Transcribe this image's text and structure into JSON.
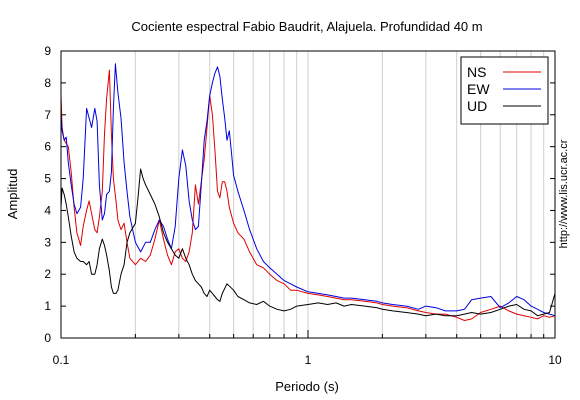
{
  "chart_data": {
    "type": "line",
    "title": "Cociente espectral Fabio Baudrit, Alajuela. Profundidad 40 m",
    "xlabel": "Periodo (s)",
    "ylabel": "Amplitud",
    "x_scale": "log",
    "xlim": [
      0.1,
      10
    ],
    "ylim": [
      0,
      9
    ],
    "x_tick_labels": [
      "0.1",
      "1",
      "10"
    ],
    "y_ticks": [
      0,
      1,
      2,
      3,
      4,
      5,
      6,
      7,
      8,
      9
    ],
    "grid": "vertical log gridlines",
    "legend_position": "top-right",
    "credit": "http://www.lis.ucr.ac.cr",
    "series": [
      {
        "name": "NS",
        "color": "#e00000",
        "points": [
          [
            0.1,
            7.6
          ],
          [
            0.101,
            6.6
          ],
          [
            0.103,
            6.2
          ],
          [
            0.105,
            6.1
          ],
          [
            0.107,
            6.0
          ],
          [
            0.11,
            5.2
          ],
          [
            0.113,
            4.1
          ],
          [
            0.116,
            3.3
          ],
          [
            0.12,
            2.9
          ],
          [
            0.123,
            3.5
          ],
          [
            0.127,
            4.0
          ],
          [
            0.13,
            4.3
          ],
          [
            0.133,
            3.9
          ],
          [
            0.137,
            3.4
          ],
          [
            0.14,
            3.3
          ],
          [
            0.143,
            3.8
          ],
          [
            0.147,
            4.6
          ],
          [
            0.15,
            6.4
          ],
          [
            0.153,
            7.5
          ],
          [
            0.157,
            8.4
          ],
          [
            0.16,
            6.4
          ],
          [
            0.163,
            5.0
          ],
          [
            0.167,
            4.3
          ],
          [
            0.17,
            3.7
          ],
          [
            0.175,
            3.4
          ],
          [
            0.18,
            3.6
          ],
          [
            0.185,
            3.0
          ],
          [
            0.19,
            2.5
          ],
          [
            0.2,
            2.3
          ],
          [
            0.21,
            2.5
          ],
          [
            0.22,
            2.4
          ],
          [
            0.23,
            2.6
          ],
          [
            0.24,
            3.1
          ],
          [
            0.25,
            3.7
          ],
          [
            0.26,
            3.1
          ],
          [
            0.27,
            2.6
          ],
          [
            0.28,
            2.3
          ],
          [
            0.29,
            2.7
          ],
          [
            0.3,
            2.8
          ],
          [
            0.31,
            2.5
          ],
          [
            0.32,
            2.4
          ],
          [
            0.33,
            2.7
          ],
          [
            0.34,
            3.3
          ],
          [
            0.35,
            4.8
          ],
          [
            0.36,
            4.2
          ],
          [
            0.37,
            4.9
          ],
          [
            0.38,
            5.6
          ],
          [
            0.39,
            6.6
          ],
          [
            0.4,
            7.6
          ],
          [
            0.41,
            7.0
          ],
          [
            0.42,
            5.9
          ],
          [
            0.43,
            4.6
          ],
          [
            0.44,
            4.4
          ],
          [
            0.45,
            4.9
          ],
          [
            0.46,
            4.9
          ],
          [
            0.47,
            4.6
          ],
          [
            0.48,
            4.1
          ],
          [
            0.5,
            3.6
          ],
          [
            0.52,
            3.3
          ],
          [
            0.55,
            3.1
          ],
          [
            0.58,
            2.7
          ],
          [
            0.62,
            2.3
          ],
          [
            0.66,
            2.2
          ],
          [
            0.7,
            2.0
          ],
          [
            0.75,
            1.8
          ],
          [
            0.8,
            1.7
          ],
          [
            0.85,
            1.5
          ],
          [
            0.9,
            1.5
          ],
          [
            1.0,
            1.4
          ],
          [
            1.1,
            1.35
          ],
          [
            1.2,
            1.3
          ],
          [
            1.3,
            1.25
          ],
          [
            1.4,
            1.2
          ],
          [
            1.5,
            1.2
          ],
          [
            1.7,
            1.15
          ],
          [
            1.9,
            1.1
          ],
          [
            2.0,
            1.05
          ],
          [
            2.2,
            1.0
          ],
          [
            2.5,
            0.95
          ],
          [
            2.8,
            0.85
          ],
          [
            3.0,
            0.8
          ],
          [
            3.3,
            0.75
          ],
          [
            3.6,
            0.75
          ],
          [
            4.0,
            0.65
          ],
          [
            4.3,
            0.55
          ],
          [
            4.6,
            0.6
          ],
          [
            5.0,
            0.8
          ],
          [
            5.5,
            0.9
          ],
          [
            6.0,
            1.0
          ],
          [
            6.5,
            0.85
          ],
          [
            7.0,
            0.75
          ],
          [
            7.5,
            0.7
          ],
          [
            8.0,
            0.65
          ],
          [
            8.5,
            0.6
          ],
          [
            9.0,
            0.7
          ],
          [
            9.5,
            0.65
          ],
          [
            10.0,
            0.7
          ]
        ]
      },
      {
        "name": "EW",
        "color": "#0000e0",
        "points": [
          [
            0.1,
            7.1
          ],
          [
            0.101,
            6.5
          ],
          [
            0.103,
            6.2
          ],
          [
            0.105,
            6.3
          ],
          [
            0.107,
            5.5
          ],
          [
            0.11,
            4.8
          ],
          [
            0.113,
            4.2
          ],
          [
            0.116,
            3.9
          ],
          [
            0.12,
            4.1
          ],
          [
            0.123,
            5.0
          ],
          [
            0.127,
            7.2
          ],
          [
            0.13,
            6.9
          ],
          [
            0.133,
            6.6
          ],
          [
            0.137,
            7.2
          ],
          [
            0.14,
            6.8
          ],
          [
            0.143,
            4.8
          ],
          [
            0.147,
            3.7
          ],
          [
            0.15,
            3.9
          ],
          [
            0.153,
            4.5
          ],
          [
            0.157,
            4.6
          ],
          [
            0.16,
            5.2
          ],
          [
            0.163,
            7.2
          ],
          [
            0.166,
            8.6
          ],
          [
            0.17,
            7.7
          ],
          [
            0.175,
            6.9
          ],
          [
            0.18,
            5.5
          ],
          [
            0.185,
            4.6
          ],
          [
            0.19,
            3.8
          ],
          [
            0.2,
            3.0
          ],
          [
            0.21,
            2.7
          ],
          [
            0.22,
            3.0
          ],
          [
            0.23,
            3.0
          ],
          [
            0.24,
            3.4
          ],
          [
            0.25,
            3.7
          ],
          [
            0.26,
            3.5
          ],
          [
            0.27,
            3.1
          ],
          [
            0.28,
            2.8
          ],
          [
            0.29,
            3.5
          ],
          [
            0.3,
            5.0
          ],
          [
            0.31,
            5.9
          ],
          [
            0.32,
            5.4
          ],
          [
            0.33,
            4.3
          ],
          [
            0.34,
            3.7
          ],
          [
            0.35,
            3.4
          ],
          [
            0.36,
            3.5
          ],
          [
            0.37,
            4.8
          ],
          [
            0.38,
            6.2
          ],
          [
            0.39,
            6.8
          ],
          [
            0.4,
            7.6
          ],
          [
            0.41,
            8.0
          ],
          [
            0.42,
            8.3
          ],
          [
            0.43,
            8.5
          ],
          [
            0.44,
            8.2
          ],
          [
            0.45,
            7.5
          ],
          [
            0.46,
            6.9
          ],
          [
            0.47,
            6.2
          ],
          [
            0.48,
            6.5
          ],
          [
            0.49,
            5.8
          ],
          [
            0.5,
            5.1
          ],
          [
            0.52,
            4.6
          ],
          [
            0.55,
            4.0
          ],
          [
            0.58,
            3.4
          ],
          [
            0.62,
            2.8
          ],
          [
            0.66,
            2.4
          ],
          [
            0.7,
            2.2
          ],
          [
            0.75,
            2.0
          ],
          [
            0.8,
            1.8
          ],
          [
            0.85,
            1.7
          ],
          [
            0.9,
            1.6
          ],
          [
            1.0,
            1.45
          ],
          [
            1.1,
            1.4
          ],
          [
            1.2,
            1.35
          ],
          [
            1.3,
            1.3
          ],
          [
            1.4,
            1.25
          ],
          [
            1.5,
            1.25
          ],
          [
            1.7,
            1.2
          ],
          [
            1.9,
            1.15
          ],
          [
            2.0,
            1.1
          ],
          [
            2.2,
            1.05
          ],
          [
            2.5,
            1.0
          ],
          [
            2.8,
            0.9
          ],
          [
            3.0,
            1.0
          ],
          [
            3.3,
            0.95
          ],
          [
            3.6,
            0.85
          ],
          [
            4.0,
            0.85
          ],
          [
            4.3,
            0.9
          ],
          [
            4.6,
            1.2
          ],
          [
            5.0,
            1.25
          ],
          [
            5.5,
            1.3
          ],
          [
            6.0,
            0.95
          ],
          [
            6.5,
            1.1
          ],
          [
            7.0,
            1.3
          ],
          [
            7.5,
            1.2
          ],
          [
            8.0,
            1.0
          ],
          [
            8.5,
            0.9
          ],
          [
            9.0,
            0.8
          ],
          [
            9.5,
            0.75
          ],
          [
            10.0,
            0.7
          ]
        ]
      },
      {
        "name": "UD",
        "color": "#000000",
        "points": [
          [
            0.1,
            4.1
          ],
          [
            0.101,
            4.7
          ],
          [
            0.103,
            4.5
          ],
          [
            0.105,
            4.2
          ],
          [
            0.107,
            3.8
          ],
          [
            0.11,
            3.2
          ],
          [
            0.113,
            2.7
          ],
          [
            0.116,
            2.5
          ],
          [
            0.12,
            2.4
          ],
          [
            0.123,
            2.4
          ],
          [
            0.127,
            2.3
          ],
          [
            0.13,
            2.4
          ],
          [
            0.133,
            2.0
          ],
          [
            0.137,
            2.0
          ],
          [
            0.14,
            2.3
          ],
          [
            0.143,
            2.8
          ],
          [
            0.147,
            3.1
          ],
          [
            0.15,
            2.9
          ],
          [
            0.153,
            2.6
          ],
          [
            0.157,
            2.1
          ],
          [
            0.16,
            1.6
          ],
          [
            0.163,
            1.4
          ],
          [
            0.167,
            1.4
          ],
          [
            0.17,
            1.5
          ],
          [
            0.175,
            2.0
          ],
          [
            0.18,
            2.3
          ],
          [
            0.185,
            3.0
          ],
          [
            0.19,
            3.3
          ],
          [
            0.2,
            3.6
          ],
          [
            0.205,
            4.4
          ],
          [
            0.21,
            5.3
          ],
          [
            0.215,
            5.0
          ],
          [
            0.22,
            4.8
          ],
          [
            0.23,
            4.5
          ],
          [
            0.24,
            4.2
          ],
          [
            0.25,
            3.8
          ],
          [
            0.26,
            3.3
          ],
          [
            0.27,
            3.0
          ],
          [
            0.28,
            2.8
          ],
          [
            0.29,
            2.6
          ],
          [
            0.3,
            2.5
          ],
          [
            0.31,
            2.8
          ],
          [
            0.32,
            2.5
          ],
          [
            0.33,
            2.3
          ],
          [
            0.34,
            2.0
          ],
          [
            0.35,
            1.8
          ],
          [
            0.36,
            1.7
          ],
          [
            0.37,
            1.6
          ],
          [
            0.38,
            1.4
          ],
          [
            0.39,
            1.3
          ],
          [
            0.4,
            1.5
          ],
          [
            0.41,
            1.4
          ],
          [
            0.42,
            1.3
          ],
          [
            0.43,
            1.2
          ],
          [
            0.44,
            1.15
          ],
          [
            0.45,
            1.4
          ],
          [
            0.47,
            1.7
          ],
          [
            0.5,
            1.5
          ],
          [
            0.52,
            1.3
          ],
          [
            0.55,
            1.2
          ],
          [
            0.58,
            1.1
          ],
          [
            0.62,
            1.05
          ],
          [
            0.66,
            1.15
          ],
          [
            0.7,
            1.0
          ],
          [
            0.75,
            0.9
          ],
          [
            0.8,
            0.85
          ],
          [
            0.85,
            0.9
          ],
          [
            0.9,
            1.0
          ],
          [
            1.0,
            1.05
          ],
          [
            1.1,
            1.1
          ],
          [
            1.2,
            1.05
          ],
          [
            1.3,
            1.1
          ],
          [
            1.4,
            1.0
          ],
          [
            1.5,
            1.05
          ],
          [
            1.7,
            1.0
          ],
          [
            1.9,
            0.95
          ],
          [
            2.0,
            0.9
          ],
          [
            2.2,
            0.85
          ],
          [
            2.5,
            0.8
          ],
          [
            2.8,
            0.75
          ],
          [
            3.0,
            0.7
          ],
          [
            3.3,
            0.75
          ],
          [
            3.6,
            0.7
          ],
          [
            4.0,
            0.7
          ],
          [
            4.3,
            0.75
          ],
          [
            4.6,
            0.8
          ],
          [
            5.0,
            0.75
          ],
          [
            5.5,
            0.8
          ],
          [
            6.0,
            0.9
          ],
          [
            6.5,
            1.0
          ],
          [
            7.0,
            1.05
          ],
          [
            7.5,
            0.9
          ],
          [
            8.0,
            0.85
          ],
          [
            8.5,
            0.7
          ],
          [
            9.0,
            0.75
          ],
          [
            9.5,
            0.8
          ],
          [
            10.0,
            1.4
          ]
        ]
      }
    ]
  }
}
